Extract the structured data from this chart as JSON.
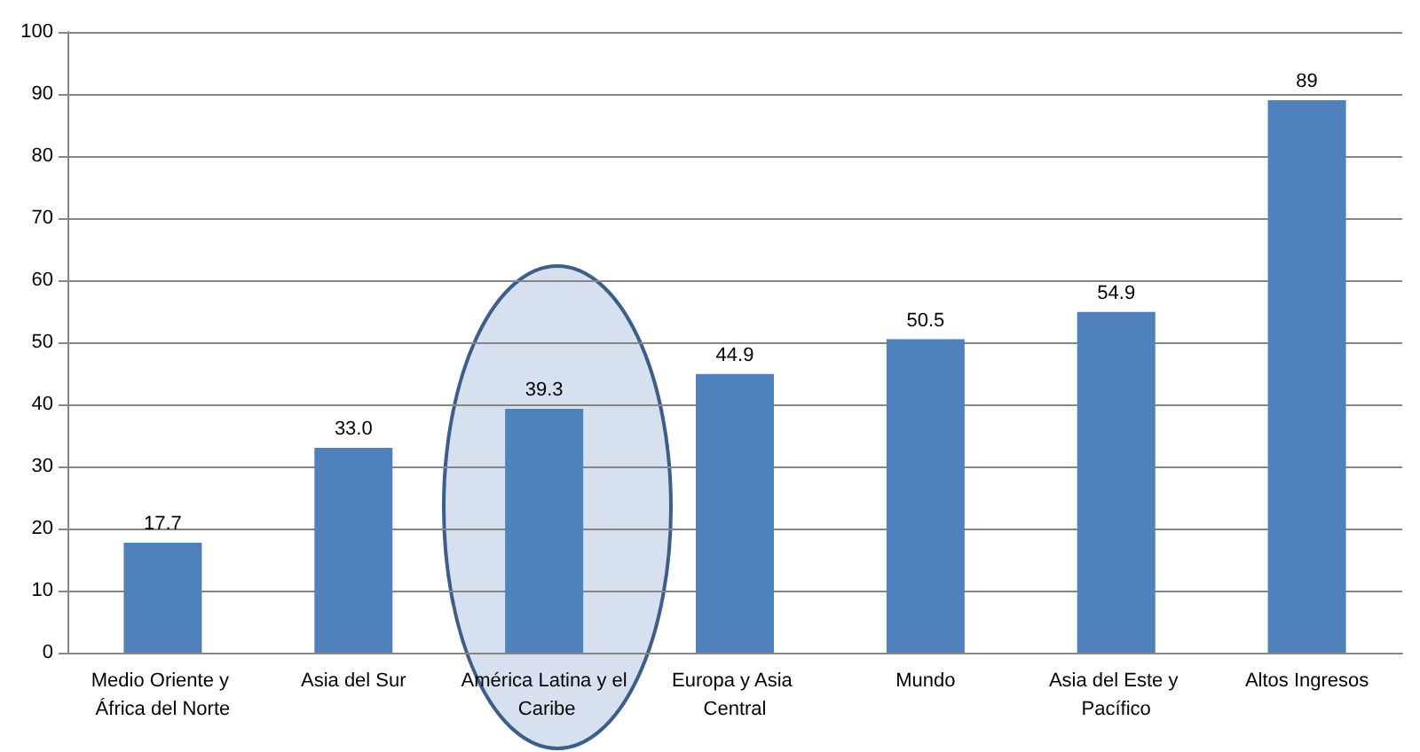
{
  "chart_data": {
    "type": "bar",
    "categories": [
      "Medio Oriente y África del Norte",
      "Asia del Sur",
      "América Latina y el Caribe",
      "Europa y Asia Central",
      "Mundo",
      "Asia del Este y Pacífico",
      "Altos Ingresos"
    ],
    "values": [
      17.7,
      33.0,
      39.3,
      44.9,
      50.5,
      54.9,
      89
    ],
    "value_labels": [
      "17.7",
      "33.0",
      "39.3",
      "44.9",
      "50.5",
      "54.9",
      "89"
    ],
    "color": "#4f81bd",
    "ylim": [
      0,
      100
    ],
    "yticks": [
      0,
      10,
      20,
      30,
      40,
      50,
      60,
      70,
      80,
      90,
      100
    ],
    "grid": "y"
  }
}
